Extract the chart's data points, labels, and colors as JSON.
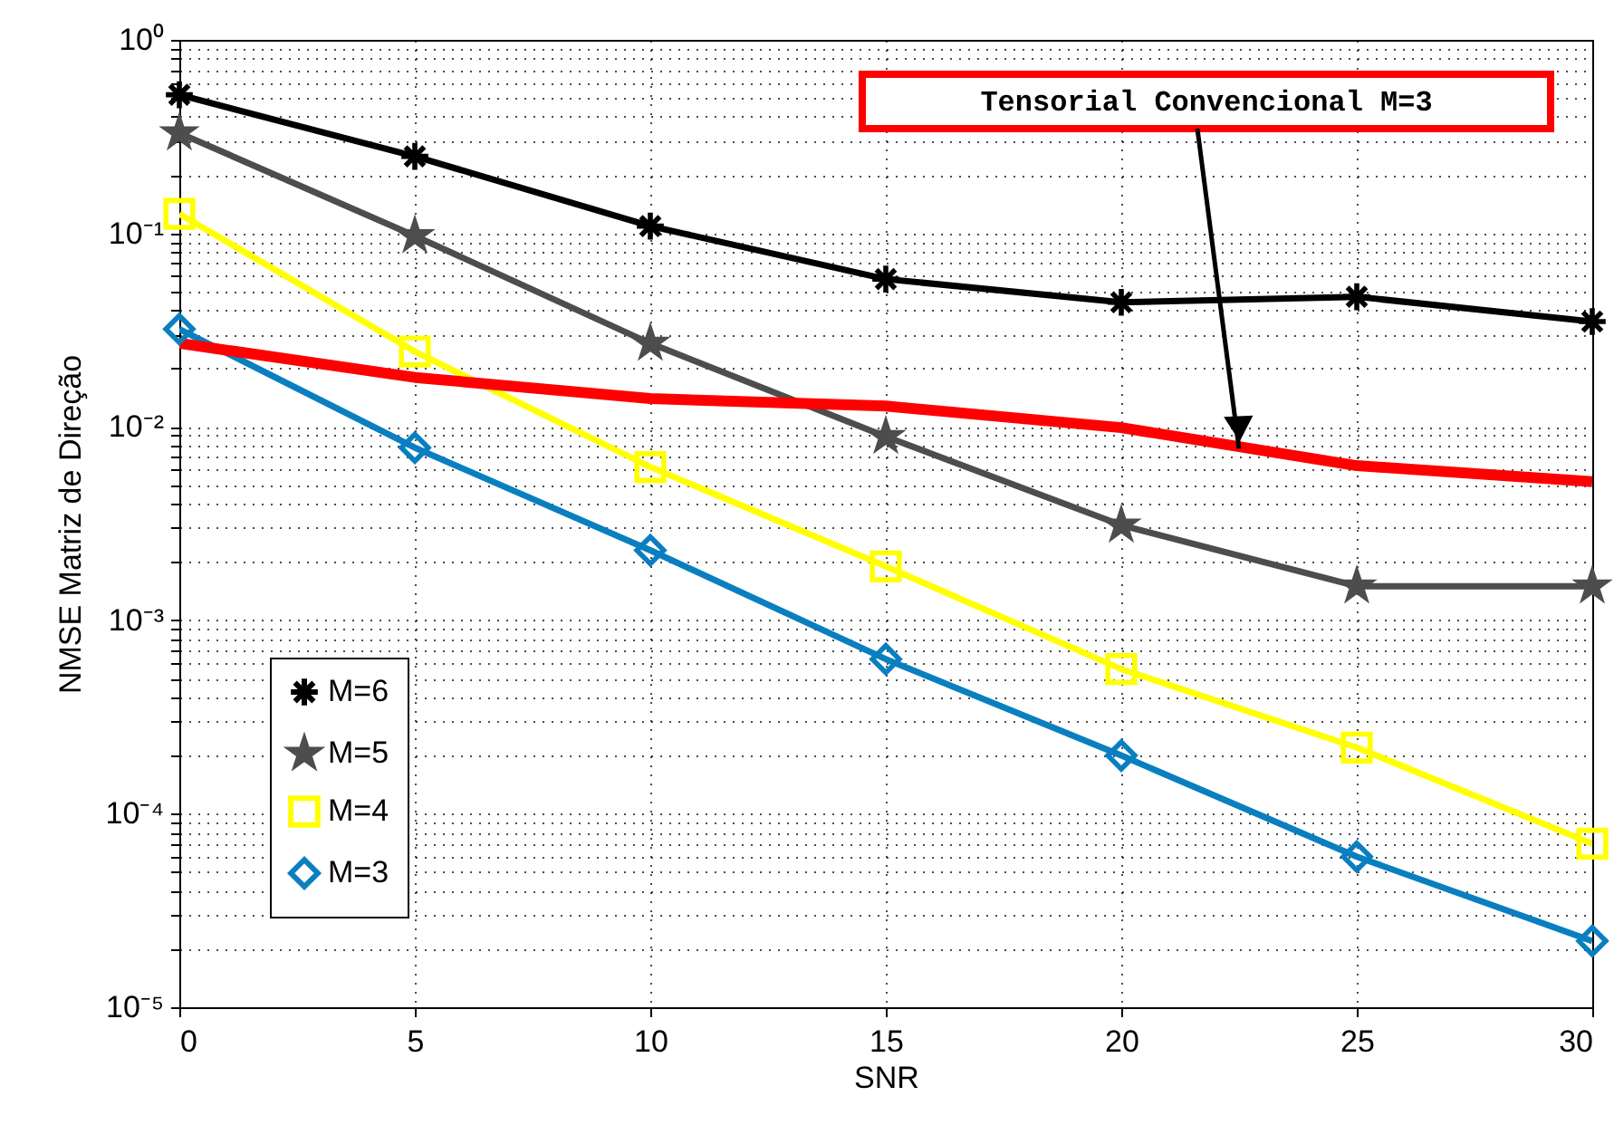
{
  "chart_data": {
    "type": "line",
    "xlabel": "SNR",
    "ylabel": "NMSE Matriz de Direção",
    "x": [
      0,
      5,
      10,
      15,
      20,
      25,
      30
    ],
    "xlim": [
      0,
      30
    ],
    "xticks": [
      0,
      5,
      10,
      15,
      20,
      25,
      30
    ],
    "ylim": [
      1e-05,
      1
    ],
    "yticks": [
      {
        "value": 1e-05,
        "label": "10⁻⁵"
      },
      {
        "value": 2e-05,
        "label": null
      },
      {
        "value": 3e-05,
        "label": null
      },
      {
        "value": 4e-05,
        "label": null
      },
      {
        "value": 5e-05,
        "label": null
      },
      {
        "value": 6e-05,
        "label": null
      },
      {
        "value": 7e-05,
        "label": null
      },
      {
        "value": 8e-05,
        "label": null
      },
      {
        "value": 9e-05,
        "label": null
      },
      {
        "value": 0.0001,
        "label": "10⁻⁴"
      },
      {
        "value": 0.0002,
        "label": null
      },
      {
        "value": 0.0003,
        "label": null
      },
      {
        "value": 0.0004,
        "label": null
      },
      {
        "value": 0.0005,
        "label": null
      },
      {
        "value": 0.0006,
        "label": null
      },
      {
        "value": 0.0007,
        "label": null
      },
      {
        "value": 0.0008,
        "label": null
      },
      {
        "value": 0.0009,
        "label": null
      },
      {
        "value": 0.001,
        "label": "10⁻³"
      },
      {
        "value": 0.002,
        "label": null
      },
      {
        "value": 0.003,
        "label": null
      },
      {
        "value": 0.004,
        "label": null
      },
      {
        "value": 0.005,
        "label": null
      },
      {
        "value": 0.006,
        "label": null
      },
      {
        "value": 0.007,
        "label": null
      },
      {
        "value": 0.008,
        "label": null
      },
      {
        "value": 0.009,
        "label": null
      },
      {
        "value": 0.01,
        "label": "10⁻²"
      },
      {
        "value": 0.02,
        "label": null
      },
      {
        "value": 0.03,
        "label": null
      },
      {
        "value": 0.04,
        "label": null
      },
      {
        "value": 0.05,
        "label": null
      },
      {
        "value": 0.06,
        "label": null
      },
      {
        "value": 0.07,
        "label": null
      },
      {
        "value": 0.08,
        "label": null
      },
      {
        "value": 0.09,
        "label": null
      },
      {
        "value": 0.1,
        "label": "10⁻¹"
      },
      {
        "value": 0.2,
        "label": null
      },
      {
        "value": 0.3,
        "label": null
      },
      {
        "value": 0.4,
        "label": null
      },
      {
        "value": 0.5,
        "label": null
      },
      {
        "value": 0.6,
        "label": null
      },
      {
        "value": 0.7,
        "label": null
      },
      {
        "value": 0.8,
        "label": null
      },
      {
        "value": 0.9,
        "label": null
      },
      {
        "value": 1,
        "label": "10⁰"
      }
    ],
    "log": "y",
    "grid": true,
    "legend": "bottom left",
    "line_style": "solid",
    "series": [
      {
        "name": "M=6",
        "color": "#000000",
        "marker": "cross",
        "values": [
          0.52,
          0.25,
          0.109,
          0.058,
          0.044,
          0.047,
          0.035
        ]
      },
      {
        "name": "M=5",
        "color": "#4d4d4d",
        "marker": "star",
        "values": [
          0.33,
          0.097,
          0.027,
          0.0089,
          0.0031,
          0.0015,
          0.0015
        ]
      },
      {
        "name": "M=4",
        "color": "#ffff00",
        "marker": "square",
        "values": [
          0.126,
          0.0245,
          0.0062,
          0.0019,
          0.00056,
          0.00022,
          7e-05
        ]
      },
      {
        "name": "M=3",
        "color": "#0a7fc0",
        "marker": "diamond",
        "values": [
          0.032,
          0.0078,
          0.0023,
          0.00063,
          0.0002,
          6e-05,
          2.2e-05
        ]
      },
      {
        "color": "#ff0000",
        "marker": "none",
        "values": [
          0.027,
          0.018,
          0.014,
          0.0128,
          0.0099,
          0.0063,
          0.0052
        ]
      }
    ],
    "annotations": [
      {
        "text": "Tensorial Convencional M=3",
        "x": 22.5,
        "y": 0.0077
      }
    ]
  }
}
